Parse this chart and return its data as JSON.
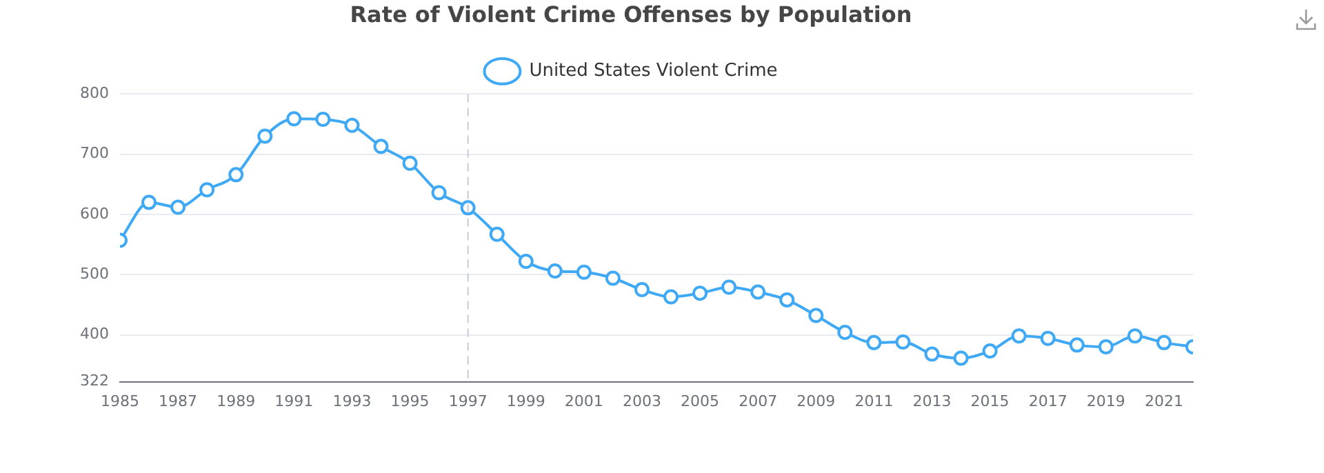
{
  "chart_data": {
    "type": "line",
    "title": "Rate of Violent Crime Offenses by Population",
    "x": [
      1985,
      1986,
      1987,
      1988,
      1989,
      1990,
      1991,
      1992,
      1993,
      1994,
      1995,
      1996,
      1997,
      1998,
      1999,
      2000,
      2001,
      2002,
      2003,
      2004,
      2005,
      2006,
      2007,
      2008,
      2009,
      2010,
      2011,
      2012,
      2013,
      2014,
      2015,
      2016,
      2017,
      2018,
      2019,
      2020,
      2021,
      2022
    ],
    "series": [
      {
        "name": "United States Violent Crime",
        "color": "#3fa9f5",
        "values": [
          557,
          620,
          612,
          641,
          666,
          730,
          759,
          758,
          748,
          713,
          685,
          636,
          611,
          567,
          522,
          506,
          504,
          494,
          475,
          463,
          469,
          479,
          471,
          458,
          432,
          404,
          387,
          388,
          368,
          361,
          373,
          398,
          394,
          383,
          380,
          398,
          387,
          380
        ]
      }
    ],
    "xlim": [
      1985,
      2022
    ],
    "xticks": [
      1985,
      1987,
      1989,
      1991,
      1993,
      1995,
      1997,
      1999,
      2001,
      2003,
      2005,
      2007,
      2009,
      2011,
      2013,
      2015,
      2017,
      2019,
      2021
    ],
    "ylim": [
      322,
      800
    ],
    "yticks": [
      322,
      400,
      500,
      600,
      700,
      800
    ],
    "ref_lines": [
      {
        "axis": "x",
        "value": 1997,
        "color": "#c8cbd6",
        "line_style": "dashed"
      }
    ],
    "grid": "y",
    "legend": "top",
    "marker": "circle",
    "line_style": "solid"
  }
}
